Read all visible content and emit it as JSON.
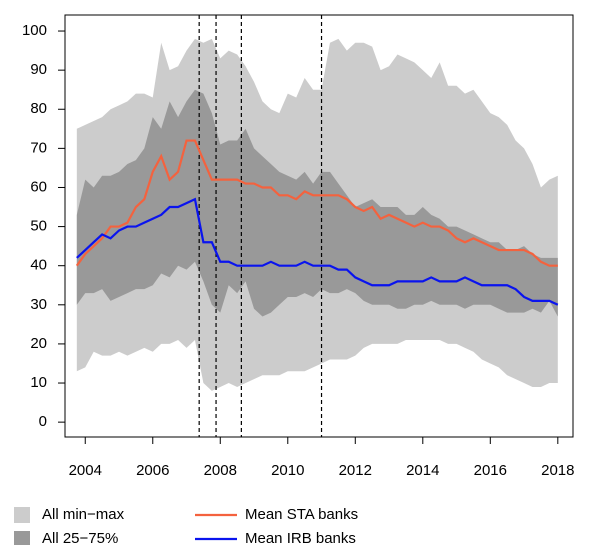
{
  "chart_data": {
    "type": "line",
    "x": [
      2003.75,
      2004,
      2004.25,
      2004.5,
      2004.75,
      2005,
      2005.25,
      2005.5,
      2005.75,
      2006,
      2006.25,
      2006.5,
      2006.75,
      2007,
      2007.25,
      2007.5,
      2007.75,
      2008,
      2008.25,
      2008.5,
      2008.75,
      2009,
      2009.25,
      2009.5,
      2009.75,
      2010,
      2010.25,
      2010.5,
      2010.75,
      2011,
      2011.25,
      2011.5,
      2011.75,
      2012,
      2012.25,
      2012.5,
      2012.75,
      2013,
      2013.25,
      2013.5,
      2013.75,
      2014,
      2014.25,
      2014.5,
      2014.75,
      2015,
      2015.25,
      2015.5,
      2015.75,
      2016,
      2016.25,
      2016.5,
      2016.75,
      2017,
      2017.25,
      2017.5,
      2017.75,
      2018
    ],
    "xlim": [
      2003.4,
      2018.45
    ],
    "ylim": [
      -3.8,
      104.1
    ],
    "xticks": [
      2004,
      2006,
      2008,
      2010,
      2012,
      2014,
      2016,
      2018
    ],
    "yticks": [
      0,
      10,
      20,
      30,
      40,
      50,
      60,
      70,
      80,
      90,
      100
    ],
    "bands": [
      {
        "name": "All min−max",
        "color": "#cccccc",
        "low": [
          13,
          14,
          18,
          17,
          17,
          18,
          17,
          18,
          19,
          18,
          20,
          20,
          21,
          19,
          21,
          10,
          8,
          9,
          10,
          9,
          10,
          11,
          12,
          12,
          12,
          13,
          13,
          13,
          14,
          15,
          16,
          16,
          16,
          17,
          19,
          20,
          20,
          20,
          20,
          21,
          21,
          21,
          21,
          21,
          20,
          20,
          19,
          18,
          16,
          15,
          14,
          12,
          11,
          10,
          9,
          9,
          10,
          10
        ],
        "high": [
          75,
          76,
          77,
          78,
          80,
          81,
          82,
          84,
          84,
          83,
          97,
          90,
          91,
          95,
          98,
          97,
          98,
          93,
          95,
          94,
          91,
          87,
          82,
          80,
          79,
          84,
          83,
          88,
          85,
          85,
          97,
          98,
          95,
          97,
          97,
          96,
          90,
          91,
          94,
          93,
          92,
          90,
          88,
          92,
          86,
          86,
          84,
          85,
          82,
          79,
          78,
          76,
          72,
          70,
          66,
          60,
          62,
          63
        ]
      },
      {
        "name": "All 25−75%",
        "color": "#999999",
        "low": [
          30,
          33,
          33,
          34,
          31,
          32,
          33,
          34,
          34,
          35,
          38,
          37,
          40,
          39,
          41,
          36,
          30,
          28,
          35,
          33,
          36,
          29,
          27,
          28,
          30,
          32,
          32,
          33,
          32,
          34,
          33,
          33,
          34,
          33,
          31,
          30,
          30,
          30,
          29,
          29,
          30,
          30,
          31,
          30,
          30,
          30,
          29,
          30,
          30,
          30,
          29,
          28,
          28,
          28,
          29,
          28,
          31,
          27
        ],
        "high": [
          53,
          62,
          60,
          63,
          63,
          64,
          66,
          67,
          70,
          78,
          75,
          82,
          78,
          82,
          85,
          84,
          79,
          71,
          72,
          72,
          75,
          70,
          68,
          66,
          64,
          63,
          62,
          64,
          61,
          64,
          64,
          61,
          58,
          55,
          56,
          57,
          55,
          55,
          55,
          53,
          53,
          55,
          53,
          52,
          50,
          50,
          49,
          48,
          47,
          46,
          46,
          44,
          44,
          45,
          43,
          42,
          42,
          42
        ]
      }
    ],
    "series": [
      {
        "name": "Mean STA banks",
        "color": "#f4623e",
        "values": [
          40,
          43,
          45,
          47,
          50,
          50,
          51,
          55,
          57,
          64,
          68,
          62,
          64,
          72,
          72,
          67,
          62,
          62,
          62,
          62,
          61,
          61,
          60,
          60,
          58,
          58,
          57,
          59,
          58,
          58,
          58,
          58,
          57,
          55,
          54,
          55,
          52,
          53,
          52,
          51,
          50,
          51,
          50,
          50,
          49,
          47,
          46,
          47,
          46,
          45,
          44,
          44,
          44,
          44,
          43,
          41,
          40,
          40
        ]
      },
      {
        "name": "Mean IRB banks",
        "color": "#0a14ee",
        "values": [
          42,
          44,
          46,
          48,
          47,
          49,
          50,
          50,
          51,
          52,
          53,
          55,
          55,
          56,
          57,
          46,
          46,
          41,
          41,
          40,
          40,
          40,
          40,
          41,
          40,
          40,
          40,
          41,
          40,
          40,
          40,
          39,
          39,
          37,
          36,
          35,
          35,
          35,
          36,
          36,
          36,
          36,
          37,
          36,
          36,
          36,
          37,
          36,
          35,
          35,
          35,
          35,
          34,
          32,
          31,
          31,
          31,
          30
        ]
      }
    ],
    "vlines": [
      2007.375,
      2007.875,
      2008.625,
      2011.0
    ]
  }
}
